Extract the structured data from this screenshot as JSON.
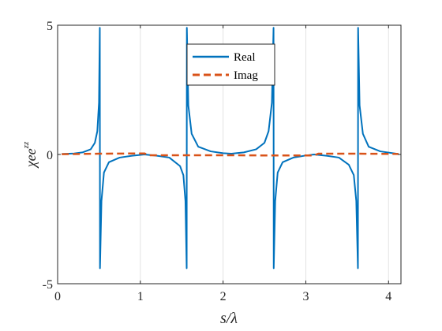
{
  "chart_data": {
    "type": "line",
    "xlabel": "s/λ",
    "ylabel": "χee",
    "ylabel_superscript": "zz",
    "xlim": [
      0,
      4.15
    ],
    "ylim": [
      -5,
      5
    ],
    "x_ticks": [
      0,
      1,
      2,
      3,
      4
    ],
    "x_tick_labels": [
      "0",
      "1",
      "2",
      "3",
      "4"
    ],
    "y_ticks": [
      -5,
      0,
      5
    ],
    "y_tick_labels": [
      "-5",
      "0",
      "5"
    ],
    "grid": "vertical",
    "legend_position": "top-center",
    "resonances": [
      0.515,
      1.565,
      2.615,
      3.635
    ],
    "series": [
      {
        "name": "Real",
        "color": "#0072BD",
        "style": "solid",
        "points": [
          [
            0.05,
            0.02
          ],
          [
            0.2,
            0.04
          ],
          [
            0.3,
            0.08
          ],
          [
            0.4,
            0.2
          ],
          [
            0.45,
            0.45
          ],
          [
            0.48,
            0.9
          ],
          [
            0.5,
            2.0
          ],
          [
            0.51,
            4.9
          ],
          [
            0.512,
            -4.4
          ],
          [
            0.53,
            -1.8
          ],
          [
            0.56,
            -0.7
          ],
          [
            0.62,
            -0.3
          ],
          [
            0.75,
            -0.12
          ],
          [
            0.9,
            -0.05
          ],
          [
            1.05,
            0.0
          ],
          [
            1.2,
            -0.05
          ],
          [
            1.35,
            -0.12
          ],
          [
            1.48,
            -0.45
          ],
          [
            1.52,
            -0.8
          ],
          [
            1.545,
            -1.8
          ],
          [
            1.56,
            -4.4
          ],
          [
            1.562,
            4.9
          ],
          [
            1.58,
            1.9
          ],
          [
            1.62,
            0.8
          ],
          [
            1.7,
            0.3
          ],
          [
            1.85,
            0.12
          ],
          [
            2.0,
            0.05
          ],
          [
            2.1,
            0.03
          ],
          [
            2.25,
            0.08
          ],
          [
            2.4,
            0.2
          ],
          [
            2.5,
            0.45
          ],
          [
            2.55,
            0.9
          ],
          [
            2.59,
            2.0
          ],
          [
            2.61,
            4.9
          ],
          [
            2.612,
            -4.4
          ],
          [
            2.63,
            -1.8
          ],
          [
            2.66,
            -0.7
          ],
          [
            2.72,
            -0.3
          ],
          [
            2.85,
            -0.12
          ],
          [
            3.0,
            -0.04
          ],
          [
            3.1,
            0.0
          ],
          [
            3.25,
            -0.05
          ],
          [
            3.4,
            -0.12
          ],
          [
            3.52,
            -0.4
          ],
          [
            3.58,
            -0.8
          ],
          [
            3.61,
            -1.8
          ],
          [
            3.63,
            -4.4
          ],
          [
            3.632,
            4.9
          ],
          [
            3.65,
            1.9
          ],
          [
            3.69,
            0.8
          ],
          [
            3.76,
            0.3
          ],
          [
            3.9,
            0.12
          ],
          [
            4.05,
            0.05
          ],
          [
            4.12,
            0.02
          ]
        ]
      },
      {
        "name": "Imag",
        "color": "#D95319",
        "style": "dashed",
        "points": [
          [
            0.05,
            0.01
          ],
          [
            0.5,
            0.03
          ],
          [
            1.05,
            0.04
          ],
          [
            1.1,
            -0.03
          ],
          [
            1.6,
            -0.03
          ],
          [
            2.1,
            -0.03
          ],
          [
            2.6,
            -0.04
          ],
          [
            3.1,
            -0.04
          ],
          [
            3.15,
            0.03
          ],
          [
            3.6,
            0.03
          ],
          [
            4.12,
            0.02
          ]
        ]
      }
    ]
  }
}
